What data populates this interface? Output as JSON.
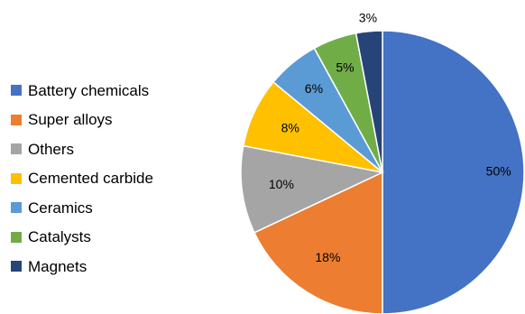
{
  "chart_data": {
    "type": "pie",
    "title": "",
    "legend_position": "left",
    "slices": [
      {
        "label": "Battery chemicals",
        "value": 50,
        "value_label": "50%",
        "color": "#4472C4"
      },
      {
        "label": "Super alloys",
        "value": 18,
        "value_label": "18%",
        "color": "#ED7D31"
      },
      {
        "label": "Others",
        "value": 10,
        "value_label": "10%",
        "color": "#A5A5A5"
      },
      {
        "label": "Cemented carbide",
        "value": 8,
        "value_label": "8%",
        "color": "#FFC000"
      },
      {
        "label": "Ceramics",
        "value": 6,
        "value_label": "6%",
        "color": "#5B9BD5"
      },
      {
        "label": "Catalysts",
        "value": 5,
        "value_label": "5%",
        "color": "#70AD47"
      },
      {
        "label": "Magnets",
        "value": 3,
        "value_label": "3%",
        "color": "#264478"
      }
    ]
  }
}
